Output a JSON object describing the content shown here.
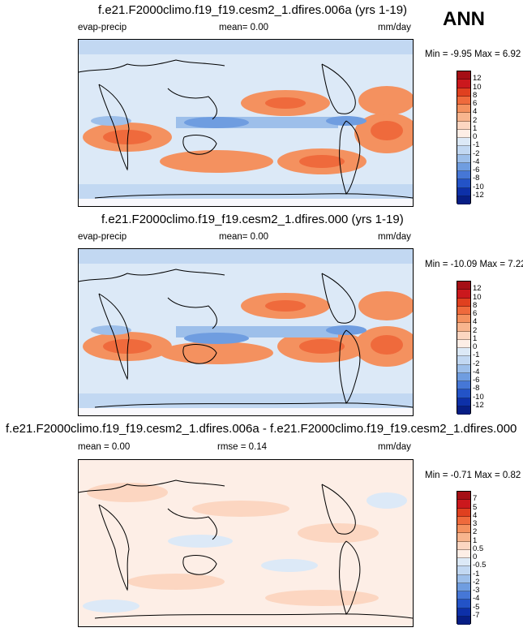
{
  "season": "ANN",
  "panels": [
    {
      "title": "f.e21.F2000climo.f19_f19.cesm2_1.dfires.006a (yrs 1-19)",
      "left_label": "evap-precip",
      "center_label": "mean=   0.00",
      "right_label": "mm/day",
      "minmax": "Min = -9.95 Max =  6.92",
      "colorbar": {
        "labels": [
          "12",
          "10",
          "8",
          "6",
          "4",
          "2",
          "1",
          "0",
          "-1",
          "-2",
          "-4",
          "-6",
          "-8",
          "-10",
          "-12"
        ],
        "colors": [
          "#a50f15",
          "#cb181d",
          "#e0401f",
          "#ef6a3c",
          "#f4915f",
          "#f8b58e",
          "#fcd6c1",
          "#fdeee6",
          "#dce9f7",
          "#c2d8f2",
          "#9dbfea",
          "#6f9de0",
          "#4677d6",
          "#2353c7",
          "#0d30a8",
          "#071e85"
        ]
      }
    },
    {
      "title": "f.e21.F2000climo.f19_f19.cesm2_1.dfires.000 (yrs 1-19)",
      "left_label": "evap-precip",
      "center_label": "mean=   0.00",
      "right_label": "mm/day",
      "minmax": "Min = -10.09 Max =  7.22",
      "colorbar": {
        "labels": [
          "12",
          "10",
          "8",
          "6",
          "4",
          "2",
          "1",
          "0",
          "-1",
          "-2",
          "-4",
          "-6",
          "-8",
          "-10",
          "-12"
        ],
        "colors": [
          "#a50f15",
          "#cb181d",
          "#e0401f",
          "#ef6a3c",
          "#f4915f",
          "#f8b58e",
          "#fcd6c1",
          "#fdeee6",
          "#dce9f7",
          "#c2d8f2",
          "#9dbfea",
          "#6f9de0",
          "#4677d6",
          "#2353c7",
          "#0d30a8",
          "#071e85"
        ]
      }
    },
    {
      "title": "f.e21.F2000climo.f19_f19.cesm2_1.dfires.006a - f.e21.F2000climo.f19_f19.cesm2_1.dfires.000",
      "left_label": "mean =   0.00",
      "center_label": "rmse =   0.14",
      "right_label": "mm/day",
      "minmax": "Min = -0.71 Max =  0.82",
      "colorbar": {
        "labels": [
          "7",
          "5",
          "4",
          "3",
          "2",
          "1",
          "0.5",
          "0",
          "-0.5",
          "-1",
          "-2",
          "-3",
          "-4",
          "-5",
          "-7"
        ],
        "colors": [
          "#a50f15",
          "#cb181d",
          "#e0401f",
          "#ef6a3c",
          "#f4915f",
          "#f8b58e",
          "#fcd6c1",
          "#fdeee6",
          "#dce9f7",
          "#c2d8f2",
          "#9dbfea",
          "#6f9de0",
          "#4677d6",
          "#2353c7",
          "#0d30a8",
          "#071e85"
        ]
      }
    }
  ]
}
